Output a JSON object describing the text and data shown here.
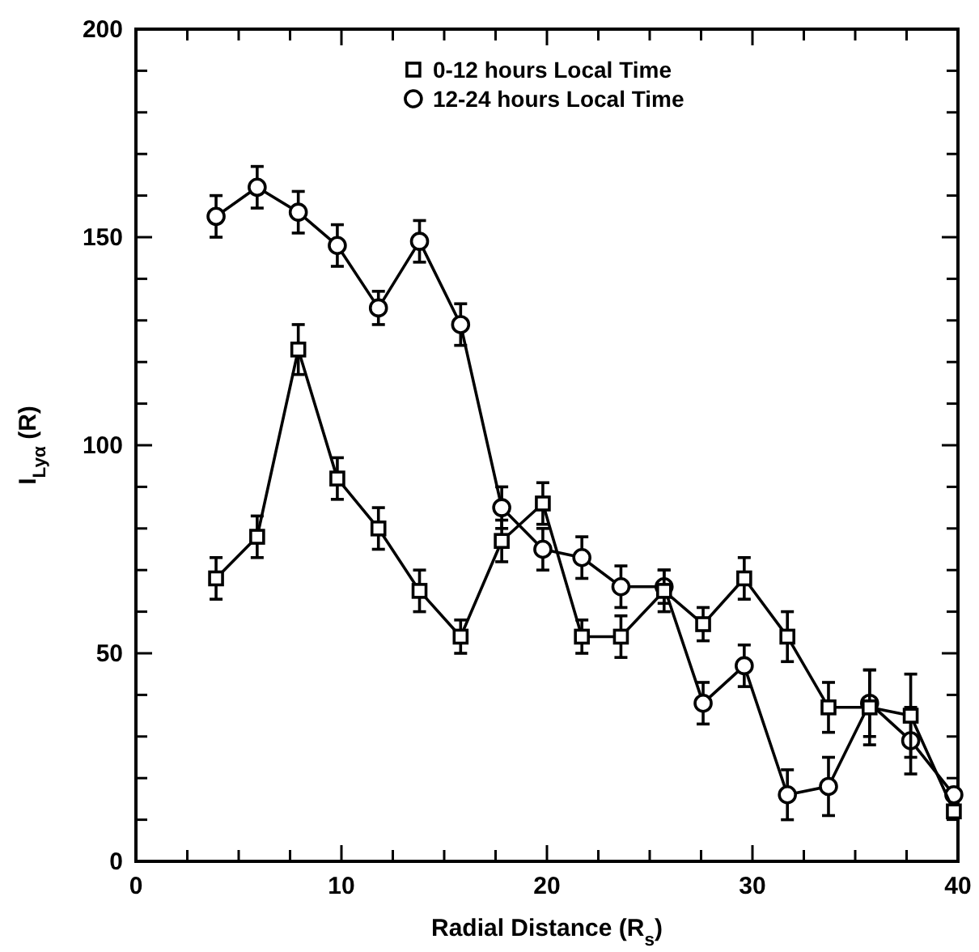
{
  "chart_data": {
    "type": "line",
    "xlabel": "Radial Distance (R$_{s}$)",
    "ylabel": "I$_{Lyα}$ (R)",
    "x": [
      3.9,
      5.9,
      7.9,
      9.8,
      11.8,
      13.8,
      15.8,
      17.8,
      19.8,
      21.7,
      23.6,
      25.7,
      27.6,
      29.6,
      31.7,
      33.7,
      35.7,
      37.7,
      39.8
    ],
    "series": [
      {
        "name": "0-12 hours Local Time",
        "color": "#000000",
        "marker": "square",
        "values": [
          68,
          78,
          123,
          92,
          80,
          65,
          54,
          77,
          86,
          54,
          54,
          65,
          57,
          68,
          54,
          37,
          37,
          35,
          12
        ],
        "errors": [
          5,
          5,
          6,
          5,
          5,
          5,
          4,
          5,
          5,
          4,
          5,
          5,
          4,
          5,
          6,
          6,
          9,
          10,
          null
        ]
      },
      {
        "name": "12-24 hours Local Time",
        "color": "#000000",
        "marker": "circle",
        "values": [
          155,
          162,
          156,
          148,
          133,
          149,
          129,
          85,
          75,
          73,
          66,
          66,
          38,
          47,
          16,
          18,
          38,
          29,
          16
        ],
        "errors": [
          5,
          5,
          5,
          5,
          4,
          5,
          5,
          5,
          5,
          5,
          5,
          4,
          5,
          5,
          6,
          7,
          8,
          8,
          null
        ]
      }
    ],
    "xlim": [
      0,
      40
    ],
    "xticks": [
      0,
      {
        "value": 2.5,
        "label": null
      },
      {
        "value": 5,
        "label": null
      },
      {
        "value": 7.5,
        "label": null
      },
      10,
      {
        "value": 12.5,
        "label": null
      },
      {
        "value": 15,
        "label": null
      },
      {
        "value": 17.5,
        "label": null
      },
      20,
      {
        "value": 22.5,
        "label": null
      },
      {
        "value": 25,
        "label": null
      },
      {
        "value": 27.5,
        "label": null
      },
      30,
      {
        "value": 32.5,
        "label": null
      },
      {
        "value": 35,
        "label": null
      },
      {
        "value": 37.5,
        "label": null
      },
      40
    ],
    "ylim": [
      0,
      200
    ],
    "yticks": [
      0,
      {
        "value": 10,
        "label": null
      },
      {
        "value": 20,
        "label": null
      },
      {
        "value": 30,
        "label": null
      },
      {
        "value": 40,
        "label": null
      },
      50,
      {
        "value": 60,
        "label": null
      },
      {
        "value": 70,
        "label": null
      },
      {
        "value": 80,
        "label": null
      },
      {
        "value": 90,
        "label": null
      },
      100,
      {
        "value": 110,
        "label": null
      },
      {
        "value": 120,
        "label": null
      },
      {
        "value": 130,
        "label": null
      },
      {
        "value": 140,
        "label": null
      },
      150,
      {
        "value": 160,
        "label": null
      },
      {
        "value": 170,
        "label": null
      },
      {
        "value": 180,
        "label": null
      },
      {
        "value": 190,
        "label": null
      },
      200
    ],
    "grid": false,
    "legend": "top",
    "line_style": "solid"
  }
}
